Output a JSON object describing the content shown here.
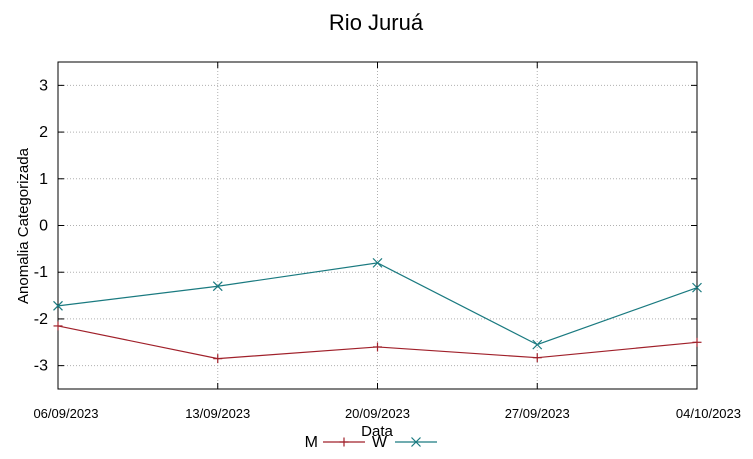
{
  "chart_data": {
    "type": "line",
    "title": "Rio Juruá",
    "xlabel": "Data",
    "ylabel": "Anomalia Categorizada",
    "categories": [
      "06/09/2023",
      "13/09/2023",
      "20/09/2023",
      "27/09/2023",
      "04/10/2023"
    ],
    "yticks": [
      3,
      2,
      1,
      0,
      -1,
      -2,
      -3
    ],
    "ylim": [
      -3.5,
      3.5
    ],
    "grid": true,
    "legend_position": "bottom",
    "series": [
      {
        "name": "M",
        "color": "#a0202a",
        "marker": "plus",
        "values": [
          -2.15,
          -2.85,
          -2.6,
          -2.83,
          -2.5
        ]
      },
      {
        "name": "W",
        "color": "#1a7a80",
        "marker": "cross",
        "values": [
          -1.72,
          -1.3,
          -0.8,
          -2.55,
          -1.33
        ]
      }
    ]
  }
}
